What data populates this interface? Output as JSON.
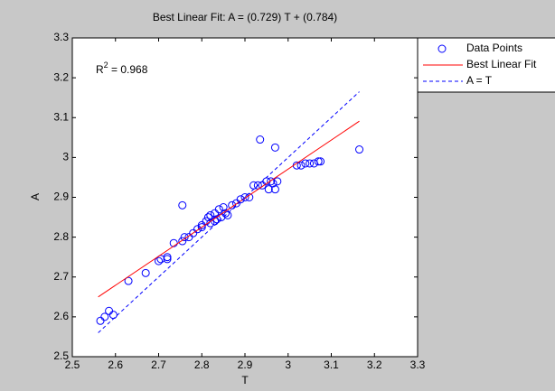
{
  "chart_data": {
    "type": "scatter",
    "title": "Best Linear Fit:  A = (0.729) T + (0.784)",
    "x_label": "T",
    "y_label": "A",
    "annotation": {
      "base": "R",
      "sup": "2",
      "rest": " = 0.968"
    },
    "xlim": [
      2.5,
      3.3
    ],
    "ylim": [
      2.5,
      3.3
    ],
    "xticks": [
      2.5,
      2.6,
      2.7,
      2.8,
      2.9,
      3,
      3.1,
      3.2,
      3.3
    ],
    "yticks": [
      2.5,
      2.6,
      2.7,
      2.8,
      2.9,
      3,
      3.1,
      3.2,
      3.3
    ],
    "legend": "outside-top-right",
    "series": [
      {
        "name": "Data Points",
        "color": "#0000ff",
        "style": "markers",
        "x": [
          2.565,
          2.575,
          2.585,
          2.595,
          2.63,
          2.67,
          2.7,
          2.705,
          2.72,
          2.72,
          2.735,
          2.755,
          2.76,
          2.755,
          2.77,
          2.78,
          2.79,
          2.8,
          2.8,
          2.81,
          2.815,
          2.82,
          2.82,
          2.83,
          2.83,
          2.835,
          2.84,
          2.845,
          2.85,
          2.855,
          2.86,
          2.87,
          2.88,
          2.89,
          2.9,
          2.91,
          2.92,
          2.93,
          2.935,
          2.94,
          2.95,
          2.955,
          2.96,
          2.965,
          2.97,
          2.97,
          2.975,
          3.02,
          3.03,
          3.04,
          3.05,
          3.06,
          3.07,
          3.075,
          3.165
        ],
        "values": [
          2.59,
          2.6,
          2.615,
          2.605,
          2.69,
          2.71,
          2.74,
          2.745,
          2.745,
          2.75,
          2.785,
          2.79,
          2.8,
          2.88,
          2.8,
          2.81,
          2.82,
          2.825,
          2.83,
          2.84,
          2.85,
          2.835,
          2.855,
          2.86,
          2.84,
          2.845,
          2.87,
          2.85,
          2.875,
          2.86,
          2.855,
          2.88,
          2.885,
          2.895,
          2.9,
          2.9,
          2.93,
          2.93,
          3.045,
          2.93,
          2.94,
          2.92,
          2.94,
          2.935,
          2.92,
          3.025,
          2.94,
          2.98,
          2.98,
          2.985,
          2.985,
          2.985,
          2.99,
          2.99,
          3.02
        ]
      },
      {
        "name": "Best Linear Fit",
        "color": "#ff0000",
        "style": "solid",
        "x": [
          2.56,
          3.165
        ],
        "values": [
          2.65,
          3.091
        ]
      },
      {
        "name": "A = T",
        "color": "#0000ff",
        "style": "dashed",
        "x": [
          2.56,
          3.165
        ],
        "values": [
          2.56,
          3.165
        ]
      }
    ]
  }
}
